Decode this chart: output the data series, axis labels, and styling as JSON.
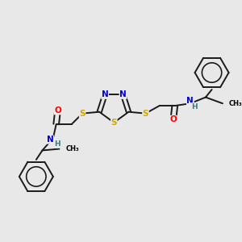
{
  "background_color": "#e8e8e8",
  "figsize": [
    3.0,
    3.0
  ],
  "dpi": 100,
  "colors": {
    "C": "#000000",
    "N": "#0000cd",
    "O": "#ff0000",
    "S": "#ccaa00",
    "H": "#2f8080",
    "bond": "#1a1a1a"
  },
  "bond_width": 1.4,
  "font_size": 7.5,
  "font_size_h": 6.5
}
